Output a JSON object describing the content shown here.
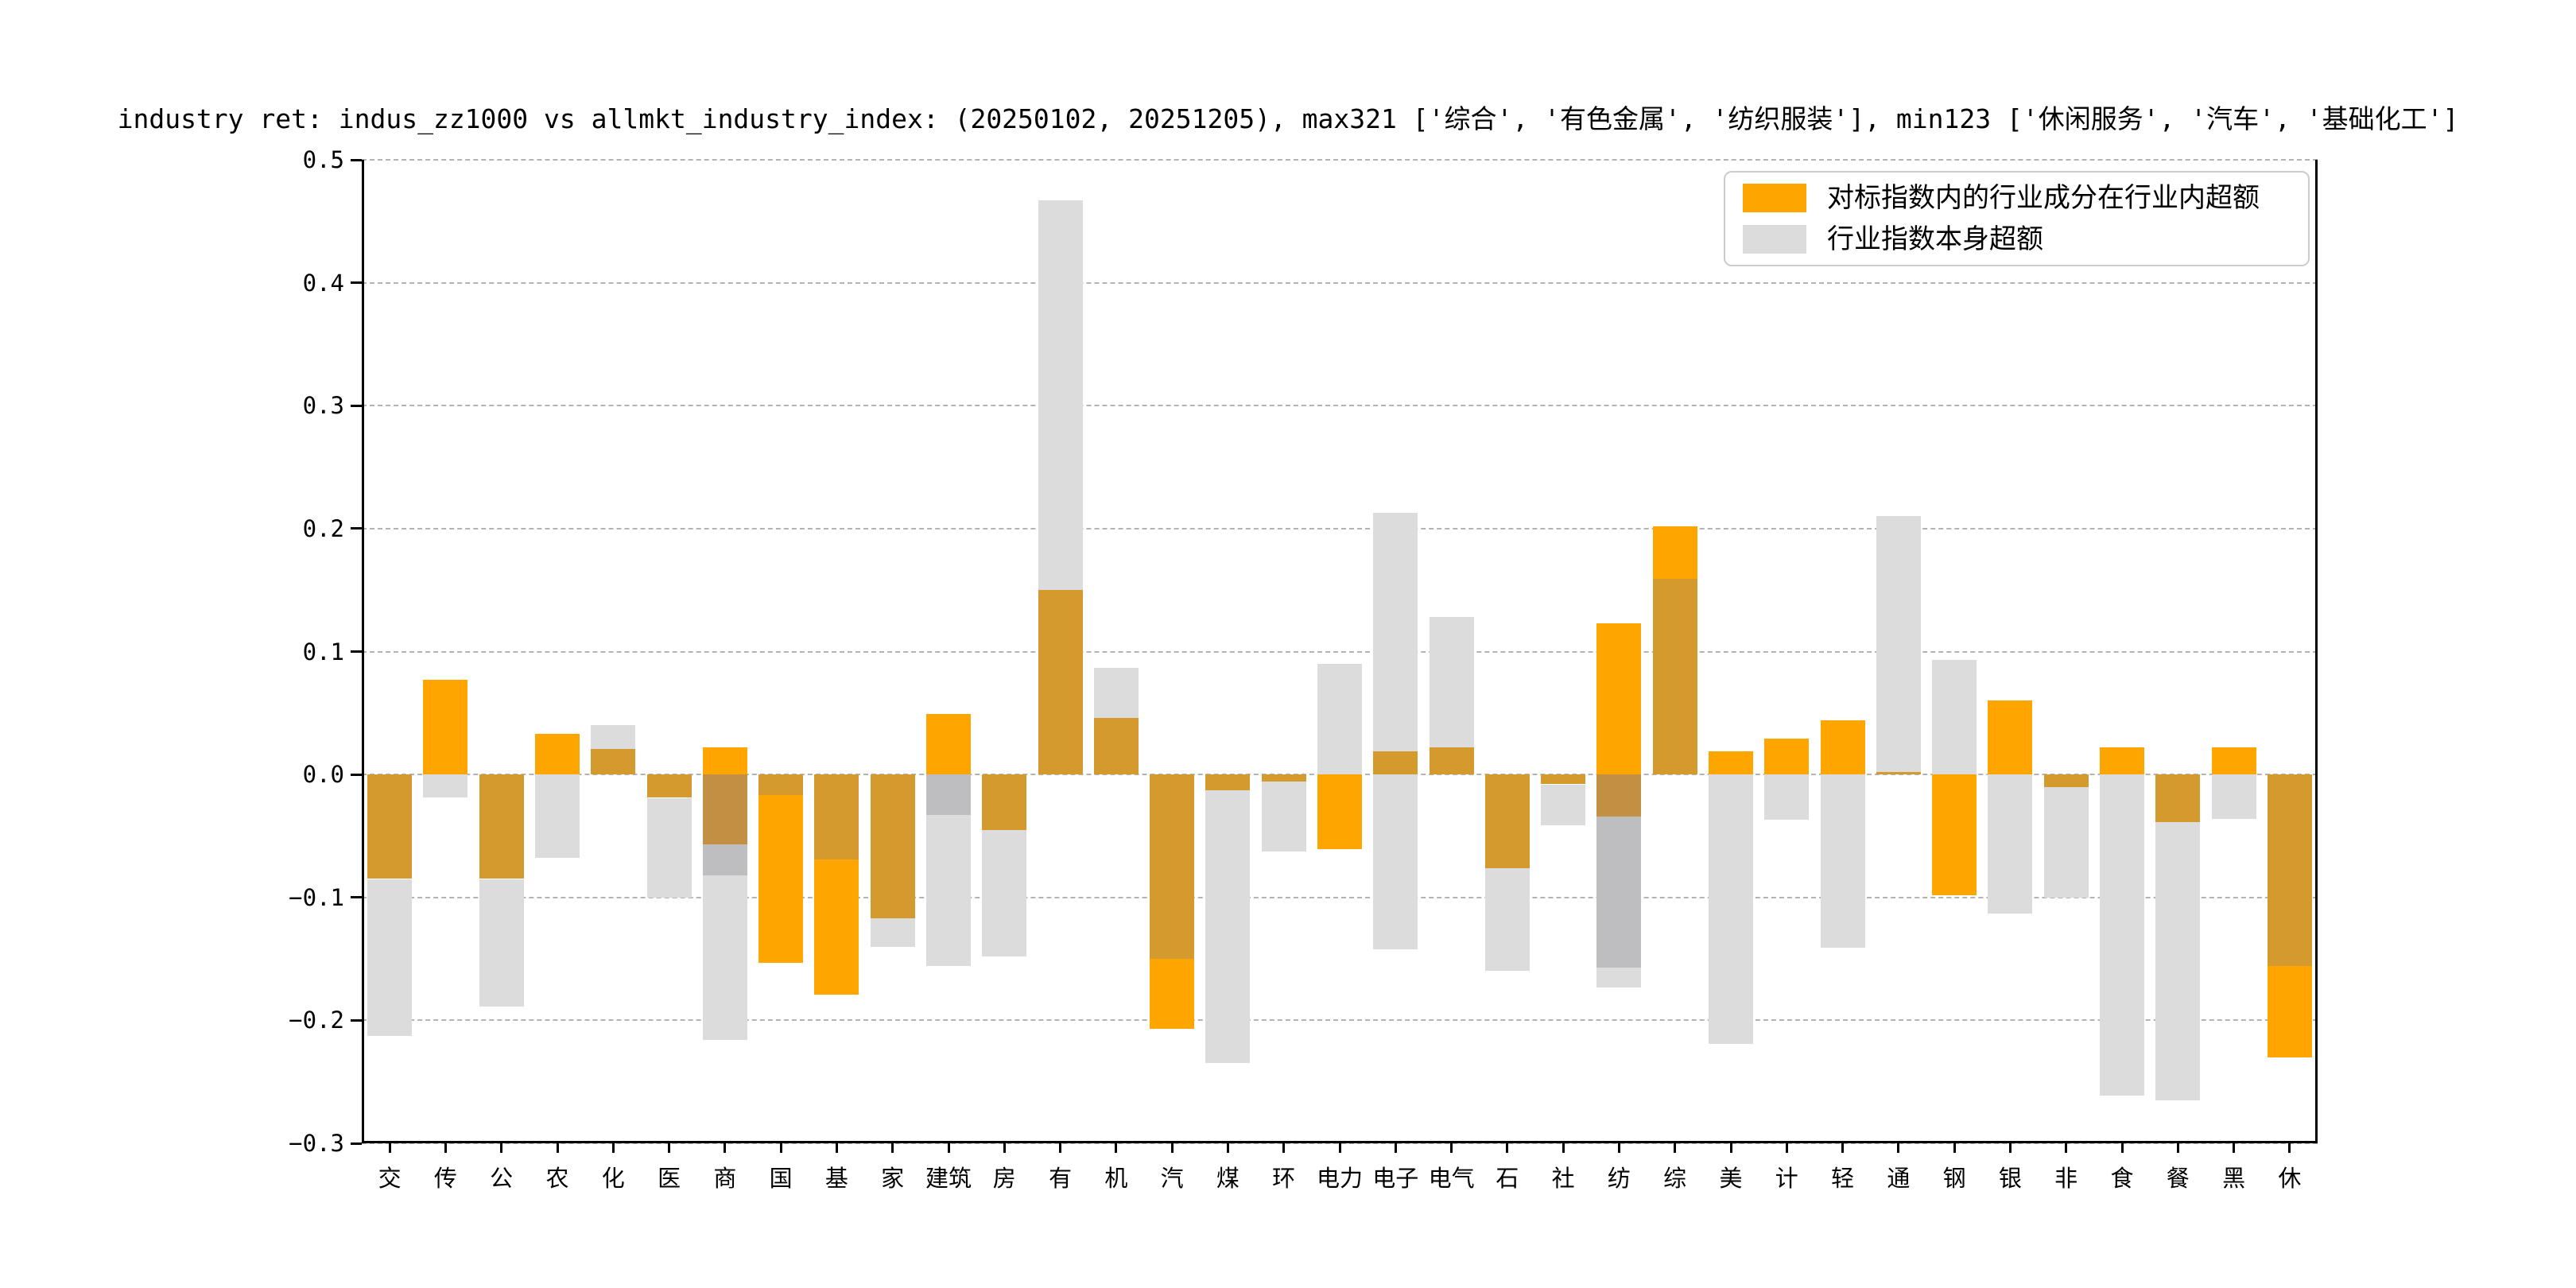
{
  "title": "industry ret: indus_zz1000 vs allmkt_industry_index: (20250102, 20251205), max321 ['综合', '有色金属', '纺织服装'], min123 ['休闲服务', '汽车', '基础化工']",
  "legend": {
    "items": [
      {
        "label": "对标指数内的行业成分在行业内超额",
        "color": "#FFA500"
      },
      {
        "label": "行业指数本身超额",
        "color": "#DCDCDC"
      }
    ]
  },
  "colors": {
    "orange": "#FFA500",
    "tan": "#D49A2E",
    "dark_tan": "#C19043",
    "gray": "#DCDCDC",
    "dark_gray": "#BEBEC0"
  },
  "axes": {
    "ylim": [
      -0.3,
      0.5
    ],
    "grid": "horizontal dashed",
    "y_ticks": [
      {
        "label": "0.5",
        "value": 0.5
      },
      {
        "label": "0.4",
        "value": 0.4
      },
      {
        "label": "0.3",
        "value": 0.3
      },
      {
        "label": "0.2",
        "value": 0.2
      },
      {
        "label": "0.1",
        "value": 0.1
      },
      {
        "label": "0.0",
        "value": 0.0
      },
      {
        "label": "−0.1",
        "value": -0.1
      },
      {
        "label": "−0.2",
        "value": -0.2
      },
      {
        "label": "−0.3",
        "value": -0.3
      }
    ]
  },
  "chart_data": {
    "type": "bar",
    "title": "industry ret: indus_zz1000 vs allmkt_industry_index: (20250102, 20251205), max321 ['综合', '有色金属', '纺织服装'], min123 ['休闲服务', '汽车', '基础化工']",
    "xlabel": "",
    "ylabel": "",
    "ylim": [
      -0.3,
      0.5
    ],
    "legend_position": "upper right",
    "categories": [
      "交",
      "传",
      "公",
      "农",
      "化",
      "医",
      "商",
      "国",
      "基",
      "家",
      "建筑",
      "房",
      "有",
      "机",
      "汽",
      "煤",
      "环",
      "电力",
      "电子",
      "电气",
      "石",
      "社",
      "纺",
      "综",
      "美",
      "计",
      "轻",
      "通",
      "钢",
      "银",
      "非",
      "食",
      "餐",
      "黑",
      "休"
    ],
    "series": [
      {
        "name": "对标指数内的行业成分在行业内超额",
        "color": "#FFA500",
        "values": [
          -0.085,
          0.077,
          -0.085,
          0.033,
          0.021,
          -0.019,
          0.022,
          -0.153,
          -0.179,
          -0.117,
          0.049,
          -0.045,
          0.15,
          0.046,
          -0.207,
          -0.013,
          -0.006,
          -0.061,
          0.019,
          0.022,
          -0.076,
          -0.008,
          0.123,
          0.202,
          0.019,
          0.029,
          0.044,
          0.002,
          -0.098,
          0.06,
          -0.01,
          0.022,
          -0.039,
          0.022,
          -0.23
        ]
      },
      {
        "name": "行业指数本身超额",
        "color": "#DCDCDC",
        "values": [
          -0.213,
          -0.019,
          -0.189,
          -0.068,
          0.04,
          -0.1,
          -0.216,
          -0.017,
          -0.069,
          -0.14,
          -0.156,
          -0.148,
          0.467,
          0.087,
          -0.15,
          -0.235,
          -0.063,
          0.09,
          0.213,
          0.128,
          -0.16,
          -0.041,
          -0.173,
          0.159,
          -0.219,
          -0.037,
          -0.141,
          0.21,
          0.093,
          -0.113,
          -0.1,
          -0.261,
          -0.265,
          -0.036,
          -0.156
        ]
      }
    ],
    "bars": [
      {
        "label": "交",
        "orange": -0.085,
        "gray": -0.213,
        "segments": [
          [
            "tan",
            0,
            -0.085
          ],
          [
            "gray",
            -0.085,
            -0.213
          ]
        ]
      },
      {
        "label": "传",
        "orange": 0.077,
        "gray": -0.019,
        "segments": [
          [
            "orange",
            0.077,
            0
          ],
          [
            "gray",
            0,
            -0.019
          ]
        ]
      },
      {
        "label": "公",
        "orange": -0.085,
        "gray": -0.189,
        "segments": [
          [
            "tan",
            0,
            -0.085
          ],
          [
            "gray",
            -0.085,
            -0.189
          ]
        ]
      },
      {
        "label": "农",
        "orange": 0.033,
        "gray": -0.068,
        "segments": [
          [
            "orange",
            0.033,
            0
          ],
          [
            "gray",
            0,
            -0.068
          ]
        ]
      },
      {
        "label": "化",
        "orange": 0.021,
        "gray": 0.04,
        "segments": [
          [
            "gray",
            0.04,
            0.021
          ],
          [
            "tan",
            0.021,
            0
          ]
        ]
      },
      {
        "label": "医",
        "orange": -0.019,
        "gray": -0.1,
        "segments": [
          [
            "tan",
            0,
            -0.019
          ],
          [
            "gray",
            -0.019,
            -0.1
          ]
        ]
      },
      {
        "label": "商",
        "orange": 0.022,
        "gray": -0.216,
        "orange2": -0.057,
        "gray2": -0.082,
        "segments": [
          [
            "orange",
            0.022,
            0
          ],
          [
            "dark_tan",
            0,
            -0.057
          ],
          [
            "dark_gray",
            -0.057,
            -0.082
          ],
          [
            "gray",
            -0.082,
            -0.216
          ]
        ]
      },
      {
        "label": "国",
        "orange": -0.153,
        "gray": -0.017,
        "segments": [
          [
            "tan",
            0,
            -0.017
          ],
          [
            "orange",
            -0.017,
            -0.153
          ]
        ]
      },
      {
        "label": "基",
        "orange": -0.179,
        "gray": -0.069,
        "segments": [
          [
            "tan",
            0,
            -0.069
          ],
          [
            "orange",
            -0.069,
            -0.179
          ]
        ]
      },
      {
        "label": "家",
        "orange": -0.117,
        "gray": -0.14,
        "segments": [
          [
            "tan",
            0,
            -0.117
          ],
          [
            "gray",
            -0.117,
            -0.14
          ]
        ]
      },
      {
        "label": "建筑",
        "orange": 0.049,
        "gray": -0.156,
        "gray2": -0.033,
        "segments": [
          [
            "orange",
            0.049,
            0
          ],
          [
            "dark_gray",
            0,
            -0.033
          ],
          [
            "gray",
            -0.033,
            -0.156
          ]
        ]
      },
      {
        "label": "房",
        "orange": -0.045,
        "gray": -0.148,
        "segments": [
          [
            "tan",
            0,
            -0.045
          ],
          [
            "gray",
            -0.045,
            -0.148
          ]
        ]
      },
      {
        "label": "有",
        "orange": 0.15,
        "gray": 0.467,
        "segments": [
          [
            "gray",
            0.467,
            0.15
          ],
          [
            "tan",
            0.15,
            0
          ]
        ]
      },
      {
        "label": "机",
        "orange": 0.046,
        "gray": 0.087,
        "segments": [
          [
            "gray",
            0.087,
            0.046
          ],
          [
            "tan",
            0.046,
            0
          ]
        ]
      },
      {
        "label": "汽",
        "orange": -0.207,
        "gray": -0.15,
        "segments": [
          [
            "tan",
            0,
            -0.15
          ],
          [
            "orange",
            -0.15,
            -0.207
          ]
        ]
      },
      {
        "label": "煤",
        "orange": -0.013,
        "gray": -0.235,
        "segments": [
          [
            "tan",
            0,
            -0.013
          ],
          [
            "gray",
            -0.013,
            -0.235
          ]
        ]
      },
      {
        "label": "环",
        "orange": -0.006,
        "gray": -0.063,
        "segments": [
          [
            "tan",
            0,
            -0.006
          ],
          [
            "gray",
            -0.006,
            -0.063
          ]
        ]
      },
      {
        "label": "电力",
        "orange": -0.061,
        "gray": 0.09,
        "segments": [
          [
            "gray",
            0.09,
            0
          ],
          [
            "orange",
            0,
            -0.061
          ]
        ]
      },
      {
        "label": "电子",
        "orange": 0.019,
        "gray": 0.213,
        "gray2": -0.142,
        "segments": [
          [
            "gray",
            0.213,
            0.019
          ],
          [
            "tan",
            0.019,
            0
          ],
          [
            "gray",
            0,
            -0.142
          ]
        ]
      },
      {
        "label": "电气",
        "orange": 0.022,
        "gray": 0.128,
        "segments": [
          [
            "gray",
            0.128,
            0.022
          ],
          [
            "tan",
            0.022,
            0
          ]
        ]
      },
      {
        "label": "石",
        "orange": -0.076,
        "gray": -0.16,
        "segments": [
          [
            "tan",
            0,
            -0.076
          ],
          [
            "gray",
            -0.076,
            -0.16
          ]
        ]
      },
      {
        "label": "社",
        "orange": -0.008,
        "gray": -0.041,
        "segments": [
          [
            "tan",
            0,
            -0.008
          ],
          [
            "gray",
            -0.008,
            -0.041
          ]
        ]
      },
      {
        "label": "纺",
        "orange": 0.123,
        "gray": -0.173,
        "orange2": -0.034,
        "gray2": -0.157,
        "segments": [
          [
            "orange",
            0.123,
            0
          ],
          [
            "dark_tan",
            0,
            -0.034
          ],
          [
            "dark_gray",
            -0.034,
            -0.157
          ],
          [
            "gray",
            -0.157,
            -0.173
          ]
        ]
      },
      {
        "label": "综",
        "orange": 0.202,
        "gray": 0.159,
        "segments": [
          [
            "orange",
            0.202,
            0.159
          ],
          [
            "tan",
            0.159,
            0
          ]
        ]
      },
      {
        "label": "美",
        "orange": 0.019,
        "gray": -0.219,
        "segments": [
          [
            "orange",
            0.019,
            0
          ],
          [
            "gray",
            0,
            -0.219
          ]
        ]
      },
      {
        "label": "计",
        "orange": 0.029,
        "gray": -0.037,
        "segments": [
          [
            "orange",
            0.029,
            0
          ],
          [
            "gray",
            0,
            -0.037
          ]
        ]
      },
      {
        "label": "轻",
        "orange": 0.044,
        "gray": -0.141,
        "segments": [
          [
            "orange",
            0.044,
            0
          ],
          [
            "gray",
            0,
            -0.141
          ]
        ]
      },
      {
        "label": "通",
        "orange": 0.002,
        "gray": 0.21,
        "segments": [
          [
            "gray",
            0.21,
            0.002
          ],
          [
            "tan",
            0.002,
            0
          ]
        ]
      },
      {
        "label": "钢",
        "orange": -0.098,
        "gray": 0.093,
        "segments": [
          [
            "gray",
            0.093,
            0
          ],
          [
            "orange",
            0,
            -0.098
          ]
        ]
      },
      {
        "label": "银",
        "orange": 0.06,
        "gray": -0.113,
        "segments": [
          [
            "orange",
            0.06,
            0
          ],
          [
            "gray",
            0,
            -0.113
          ]
        ]
      },
      {
        "label": "非",
        "orange": -0.01,
        "gray": -0.1,
        "segments": [
          [
            "tan",
            0,
            -0.01
          ],
          [
            "gray",
            -0.01,
            -0.1
          ]
        ]
      },
      {
        "label": "食",
        "orange": 0.022,
        "gray": -0.261,
        "segments": [
          [
            "orange",
            0.022,
            0
          ],
          [
            "gray",
            0,
            -0.261
          ]
        ]
      },
      {
        "label": "餐",
        "orange": -0.039,
        "gray": -0.265,
        "segments": [
          [
            "tan",
            0,
            -0.039
          ],
          [
            "gray",
            -0.039,
            -0.265
          ]
        ]
      },
      {
        "label": "黑",
        "orange": 0.022,
        "gray": -0.036,
        "segments": [
          [
            "orange",
            0.022,
            0
          ],
          [
            "gray",
            0,
            -0.036
          ]
        ]
      },
      {
        "label": "休",
        "orange": -0.23,
        "gray": -0.156,
        "segments": [
          [
            "tan",
            0,
            -0.156
          ],
          [
            "orange",
            -0.156,
            -0.23
          ]
        ]
      }
    ]
  }
}
